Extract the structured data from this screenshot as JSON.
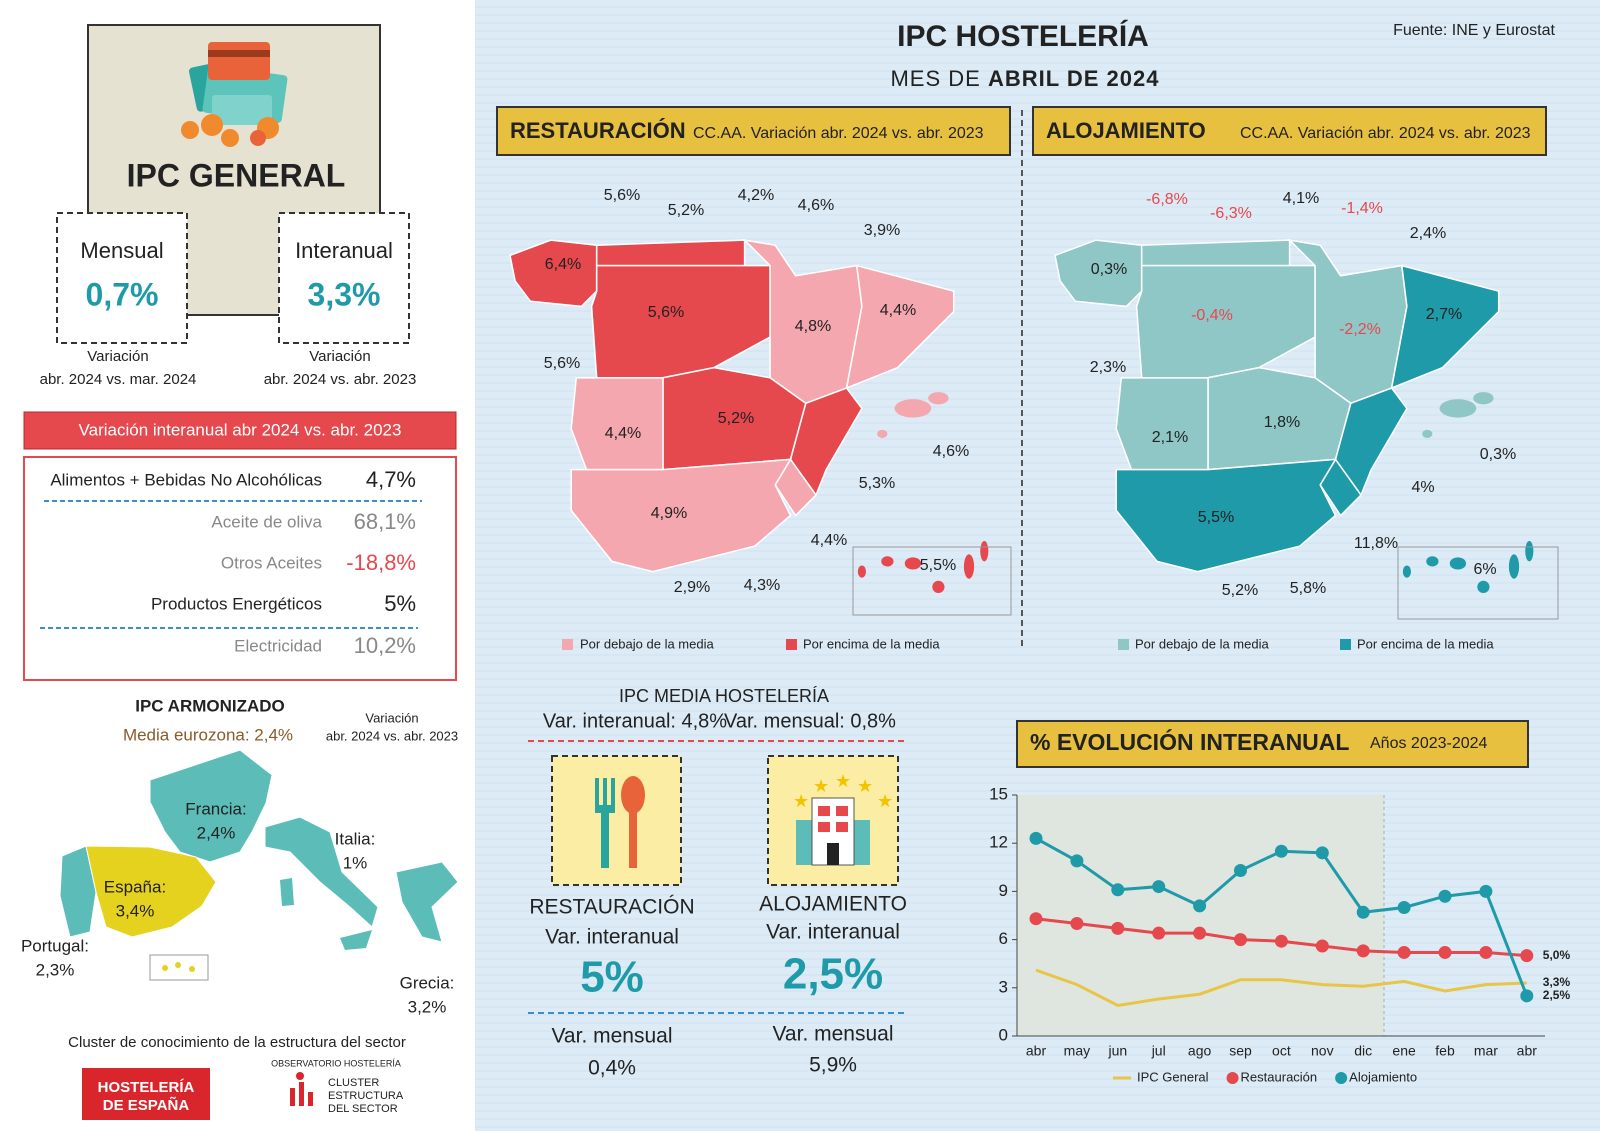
{
  "header": {
    "title": "IPC HOSTELERÍA",
    "subtitle_prefix": "MES DE ",
    "subtitle_bold": "ABRIL DE 2024",
    "source": "Fuente: INE y Eurostat"
  },
  "ipc_general": {
    "title": "IPC GENERAL",
    "monthly": {
      "label": "Mensual",
      "value": "0,7%",
      "note_1": "Variación",
      "note_2": "abr. 2024 vs. mar. 2024"
    },
    "interannual": {
      "label": "Interanual",
      "value": "3,3%",
      "note_1": "Variación",
      "note_2": "abr. 2024 vs. abr. 2023"
    }
  },
  "breakdown": {
    "title": "Variación interanual abr 2024 vs. abr. 2023",
    "rows": [
      [
        "Alimentos + Bebidas No Alcohólicas",
        "4,7%"
      ],
      [
        "Aceite de oliva",
        "68,1%"
      ],
      [
        "Otros Aceites",
        "-18,8%"
      ],
      [
        "Productos Energéticos",
        "5%"
      ],
      [
        "Electricidad",
        "10,2%"
      ]
    ]
  },
  "harmonized": {
    "title": "IPC ARMONIZADO",
    "eurozone": "Media eurozona: 2,4%",
    "note_1": "Variación",
    "note_2": "abr. 2024 vs. abr. 2023",
    "countries": [
      {
        "name": "Francia:",
        "value": "2,4%"
      },
      {
        "name": "Italia:",
        "value": "1%"
      },
      {
        "name": "España:",
        "value": "3,4%"
      },
      {
        "name": "Portugal:",
        "value": "2,3%"
      },
      {
        "name": "Grecia:",
        "value": "3,2%"
      }
    ]
  },
  "footer": {
    "cluster": "Cluster de conocimiento de la estructura del sector",
    "logo_1": [
      "HOSTELERÍA",
      "DE ESPAÑA"
    ],
    "observatorio": "OBSERVATORIO HOSTELERÍA",
    "logo_2": [
      "CLUSTER",
      "ESTRUCTURA",
      "DEL SECTOR"
    ]
  },
  "maps": {
    "restauracion": {
      "title": "RESTAURACIÓN",
      "subtitle": "CC.AA. Variación abr. 2024 vs. abr. 2023",
      "labels": [
        "5,6%",
        "5,2%",
        "4,2%",
        "4,6%",
        "3,9%",
        "6,4%",
        "5,6%",
        "4,8%",
        "4,4%",
        "5,6%",
        "5,2%",
        "4,4%",
        "4,6%",
        "5,3%",
        "4,9%",
        "4,4%",
        "5,5%",
        "2,9%",
        "4,3%"
      ],
      "legend_below": "Por debajo de la media",
      "legend_above": "Por encima de la media"
    },
    "alojamiento": {
      "title": "ALOJAMIENTO",
      "subtitle": "CC.AA. Variación abr. 2024 vs. abr. 2023",
      "labels": [
        "-6,8%",
        "-6,3%",
        "4,1%",
        "-1,4%",
        "2,4%",
        "0,3%",
        "-0,4%",
        "-2,2%",
        "2,7%",
        "2,3%",
        "2,1%",
        "1,8%",
        "0,3%",
        "4%",
        "5,5%",
        "11,8%",
        "6%",
        "5,2%",
        "5,8%"
      ],
      "legend_below": "Por debajo de la media",
      "legend_above": "Por encima de la media"
    }
  },
  "media": {
    "title": "IPC MEDIA HOSTELERÍA",
    "interannual": "Var. interanual: 4,8%",
    "monthly": "Var. mensual: 0,8%",
    "cards": [
      {
        "title": "RESTAURACIÓN",
        "int_label": "Var. interanual",
        "int_value": "5%",
        "mon_label": "Var. mensual",
        "mon_value": "0,4%"
      },
      {
        "title": "ALOJAMIENTO",
        "int_label": "Var. interanual",
        "int_value": "2,5%",
        "mon_label": "Var. mensual",
        "mon_value": "5,9%"
      }
    ]
  },
  "chart_data": {
    "type": "line",
    "title": "% EVOLUCIÓN INTERANUAL",
    "subtitle": "Años 2023-2024",
    "categories": [
      "abr",
      "may",
      "jun",
      "jul",
      "ago",
      "sep",
      "oct",
      "nov",
      "dic",
      "ene",
      "feb",
      "mar",
      "abr"
    ],
    "series": [
      {
        "name": "IPC General",
        "color": "#e8c547",
        "markers": false,
        "values": [
          4.1,
          3.2,
          1.9,
          2.3,
          2.6,
          3.5,
          3.5,
          3.2,
          3.1,
          3.4,
          2.8,
          3.2,
          3.3
        ],
        "value_labels": [
          null,
          null,
          null,
          null,
          null,
          null,
          null,
          null,
          null,
          null,
          null,
          null,
          "3,3%"
        ]
      },
      {
        "name": "Restauración",
        "color": "#e5484d",
        "markers": true,
        "values": [
          7.3,
          7.0,
          6.7,
          6.4,
          6.4,
          6.0,
          5.9,
          5.6,
          5.3,
          5.2,
          5.2,
          5.2,
          5.0
        ],
        "value_labels": [
          null,
          null,
          null,
          null,
          null,
          null,
          null,
          null,
          null,
          null,
          null,
          null,
          "5,0%"
        ]
      },
      {
        "name": "Alojamiento",
        "color": "#1e9aa8",
        "markers": true,
        "values": [
          12.3,
          10.9,
          9.1,
          9.3,
          8.1,
          10.3,
          11.5,
          11.4,
          7.7,
          8.0,
          8.7,
          9.0,
          2.5
        ],
        "value_labels": [
          null,
          null,
          null,
          null,
          null,
          null,
          null,
          null,
          null,
          null,
          null,
          null,
          "2,5%"
        ]
      }
    ],
    "ylim": [
      0,
      15
    ],
    "yticks": [
      0,
      3,
      6,
      9,
      12,
      15
    ],
    "grid": false
  }
}
